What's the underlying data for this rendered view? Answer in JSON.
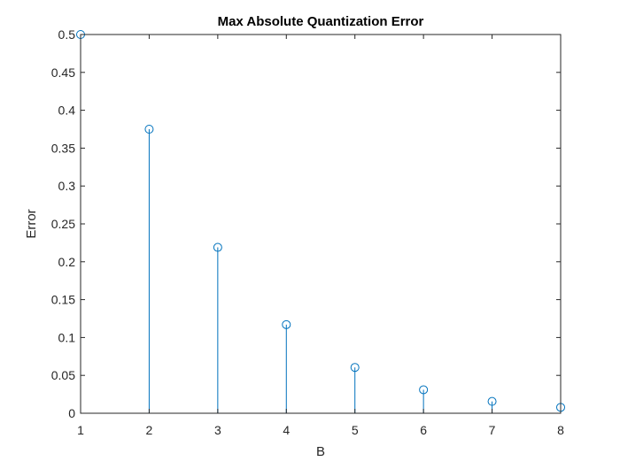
{
  "chart_data": {
    "type": "stem",
    "title": "Max Absolute Quantization Error",
    "xlabel": "B",
    "ylabel": "Error",
    "xlim": [
      1,
      8
    ],
    "ylim": [
      0,
      0.5
    ],
    "xticks": [
      "1",
      "2",
      "3",
      "4",
      "5",
      "6",
      "7",
      "8"
    ],
    "yticks": [
      "0",
      "0.05",
      "0.1",
      "0.15",
      "0.2",
      "0.25",
      "0.3",
      "0.35",
      "0.4",
      "0.45",
      "0.5"
    ],
    "x": [
      1,
      2,
      3,
      4,
      5,
      6,
      7,
      8
    ],
    "y": [
      0.5,
      0.375,
      0.219,
      0.117,
      0.0605,
      0.031,
      0.0156,
      0.0078
    ],
    "marker": "open-circle",
    "grid": false,
    "colors": {
      "series": "#0072BD",
      "axes": "#262626",
      "background": "#ffffff"
    }
  }
}
